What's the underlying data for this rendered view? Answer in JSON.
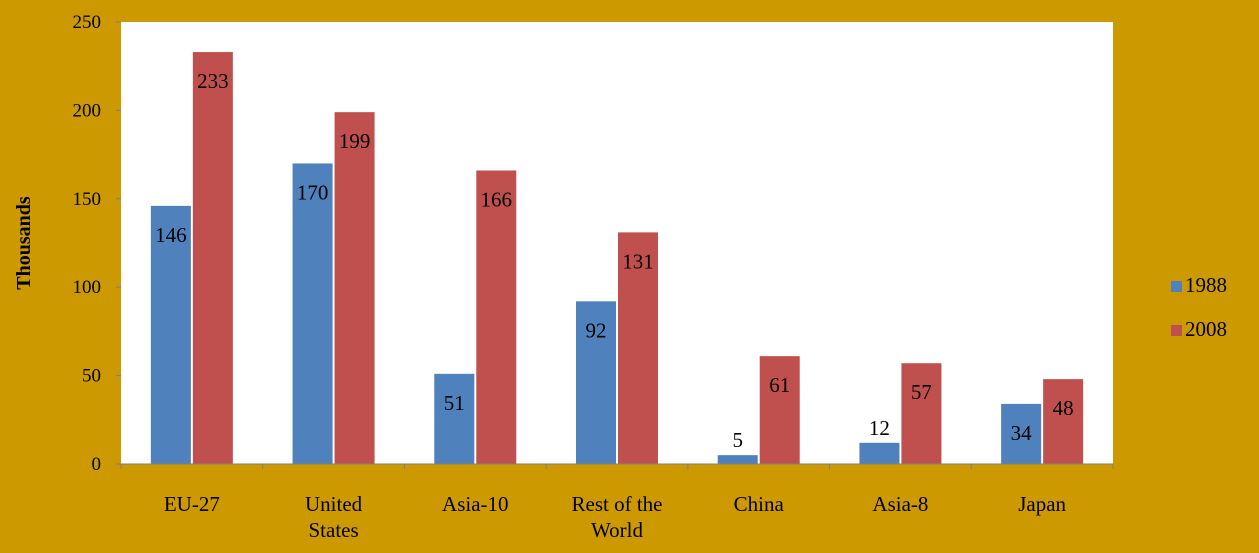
{
  "chart_data": {
    "type": "bar",
    "title": "",
    "xlabel": "",
    "ylabel": "Thousands",
    "ylim": [
      0,
      250
    ],
    "yticks": [
      0,
      50,
      100,
      150,
      200,
      250
    ],
    "grid": false,
    "legend_position": "right",
    "categories": [
      [
        "EU-27"
      ],
      [
        "United",
        "States"
      ],
      [
        "Asia-10"
      ],
      [
        "Rest of the",
        "World"
      ],
      [
        "China"
      ],
      [
        "Asia-8"
      ],
      [
        "Japan"
      ]
    ],
    "series": [
      {
        "name": "1988",
        "color": "#4f81bd",
        "values": [
          146,
          170,
          51,
          92,
          5,
          12,
          34
        ]
      },
      {
        "name": "2008",
        "color": "#c0504d",
        "values": [
          233,
          199,
          166,
          131,
          61,
          57,
          48
        ]
      }
    ]
  }
}
